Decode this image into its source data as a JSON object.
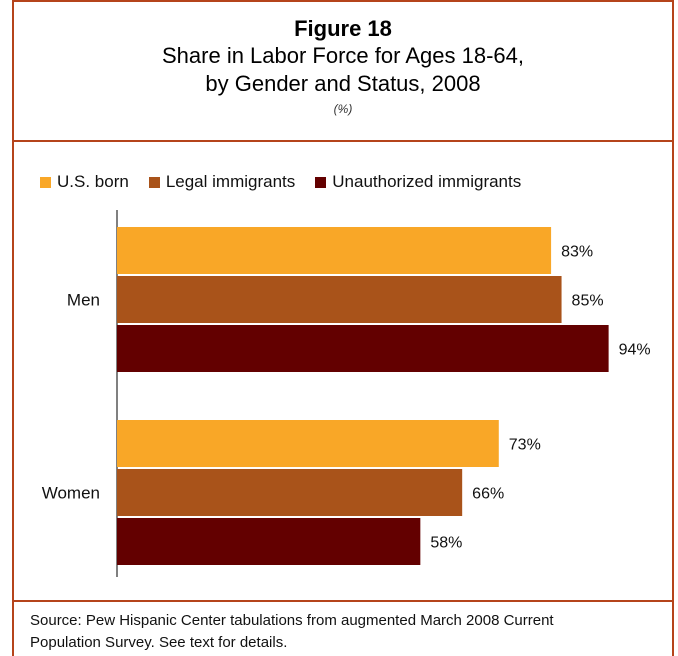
{
  "header": {
    "figure_label": "Figure 18",
    "title_line1": "Share in Labor Force for Ages 18-64,",
    "title_line2": "by Gender and Status, 2008",
    "unit": "(%)"
  },
  "colors": {
    "frame": "#b5441b",
    "us_born": "#f9a727",
    "legal": "#a9531a",
    "unauthorized": "#630000"
  },
  "chart_data": {
    "type": "bar",
    "orientation": "horizontal",
    "categories": [
      "Men",
      "Women"
    ],
    "series": [
      {
        "name": "U.S. born",
        "values": [
          83,
          73
        ],
        "labels": [
          "83%",
          "73%"
        ]
      },
      {
        "name": "Legal immigrants",
        "values": [
          85,
          66
        ],
        "labels": [
          "85%",
          "66%"
        ]
      },
      {
        "name": "Unauthorized immigrants",
        "values": [
          94,
          58
        ],
        "labels": [
          "94%",
          "58%"
        ]
      }
    ],
    "xlim": [
      0,
      100
    ],
    "grid": false,
    "legend_position": "top"
  },
  "source": {
    "line1": "Source:  Pew Hispanic Center tabulations from augmented March 2008 Current",
    "line2": "Population Survey.  See text for details."
  }
}
